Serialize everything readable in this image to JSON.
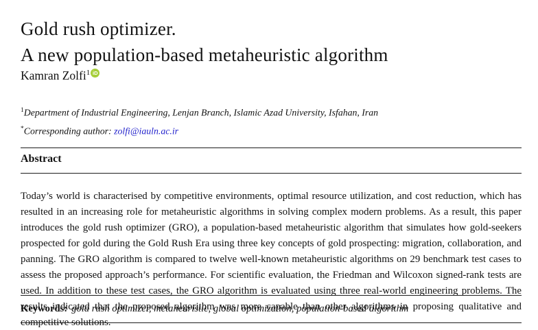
{
  "paper": {
    "title_line1": "Gold rush optimizer.",
    "title_line2": "A new population-based metaheuristic algorithm",
    "author": {
      "name": "Kamran Zolfi",
      "superscript": "1",
      "orcid_icon_label": "iD"
    },
    "affiliation": {
      "superscript": "1",
      "text": "Department of Industrial Engineering, Lenjan Branch, Islamic Azad University, Isfahan, Iran"
    },
    "corresponding": {
      "superscript": "*",
      "label": "Corresponding author: ",
      "email": "zolfi@iauln.ac.ir"
    },
    "abstract": {
      "heading": "Abstract",
      "text": "Today’s world is characterised by competitive environments, optimal resource utilization, and cost reduction, which has resulted in an increasing role for metaheuristic algorithms in solving complex modern problems. As a result, this paper introduces the gold rush optimizer (GRO), a population-based metaheuristic algorithm that simulates how gold-seekers prospected for gold during the Gold Rush Era using three key concepts of gold prospecting: migration, collaboration, and panning. The GRO algorithm is compared to twelve well-known metaheuristic algorithms on 29 benchmark test cases to assess the proposed approach’s performance. For scientific evaluation, the Friedman and Wilcoxon signed-rank tests are used. In addition to these test cases, the GRO algorithm is evaluated using three real-world engineering problems. The results indicated that the proposed algorithm was more capable than other algorithms in proposing qualitative and competitive solutions."
    },
    "keywords": {
      "label": "Keywords:",
      "text": "gold rush optimizer, metaheuristic, global optimization, population-based algorithm"
    }
  },
  "colors": {
    "email_link": "#2323cc",
    "orcid_green": "#a6ce39",
    "text": "#121212",
    "rule": "#1c1c1c"
  }
}
